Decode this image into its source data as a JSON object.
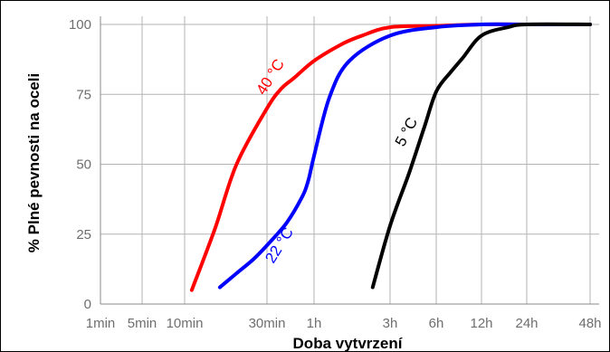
{
  "chart_data": {
    "type": "line",
    "xlabel": "Doba vytvrzení",
    "ylabel": "% Plné pevnosti na oceli",
    "x_ticks": [
      "1min",
      "5min",
      "10min",
      "30min",
      "1h",
      "3h",
      "6h",
      "12h",
      "24h",
      "48h"
    ],
    "x_tick_minutes": [
      1,
      5,
      10,
      30,
      60,
      180,
      360,
      720,
      1440,
      2880
    ],
    "x_scale": "piecewise",
    "y_ticks": [
      "0",
      "25",
      "50",
      "75",
      "100"
    ],
    "ylim": [
      0,
      100
    ],
    "grid": true,
    "series": [
      {
        "name": "40 °C",
        "color": "#ff0000",
        "x_minutes": [
          11,
          15,
          20,
          30,
          37,
          45,
          60,
          90,
          120,
          180,
          360,
          720,
          1440,
          2880
        ],
        "y": [
          5,
          27,
          50,
          70,
          77,
          81,
          87,
          93,
          96,
          99,
          99.5,
          100,
          100,
          100
        ]
      },
      {
        "name": "22 °C",
        "color": "#0000ff",
        "x_minutes": [
          16,
          20,
          25,
          30,
          40,
          50,
          55,
          60,
          75,
          100,
          180,
          360,
          720,
          1440,
          2880
        ],
        "y": [
          6,
          11,
          16,
          21,
          29,
          38,
          44,
          53,
          74,
          87,
          96,
          99,
          100,
          100,
          100
        ]
      },
      {
        "name": "5 °C",
        "color": "#000000",
        "x_minutes": [
          140,
          180,
          240,
          300,
          360,
          450,
          540,
          720,
          1080,
          1440,
          2880
        ],
        "y": [
          6,
          28,
          47,
          63,
          76,
          83,
          88,
          96,
          99,
          100,
          100
        ]
      }
    ]
  }
}
